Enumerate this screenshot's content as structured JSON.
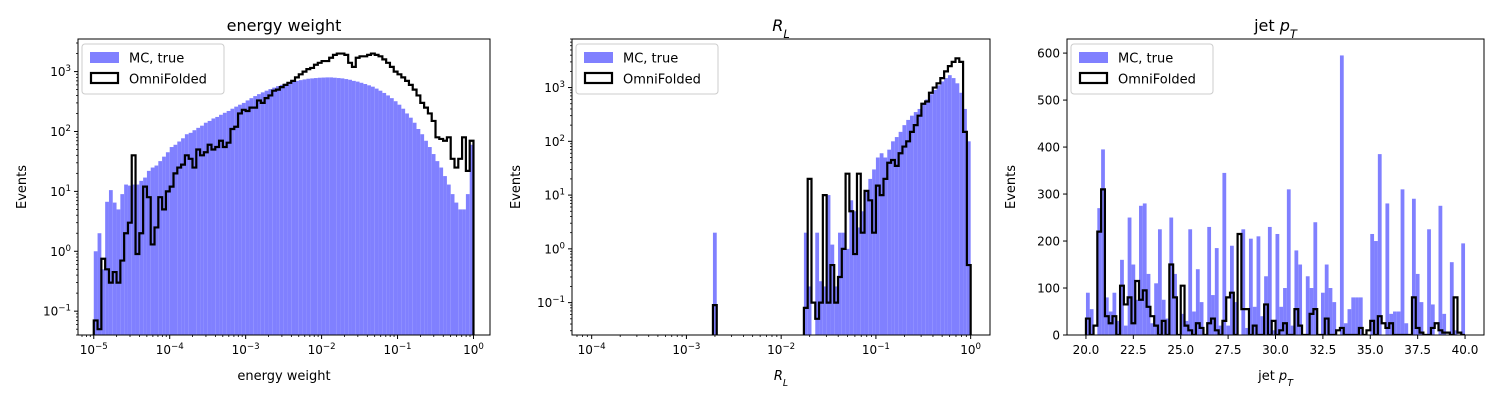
{
  "style": {
    "mc_color": "#8080ff",
    "omni_color": "#000000",
    "frame_color": "#000000",
    "legend_border": "#cccccc"
  },
  "legend": {
    "mc_label": "MC, true",
    "omni_label": "OmniFolded",
    "location": "upper-left"
  },
  "chart_data": [
    {
      "type": "histogram",
      "title_parts": [
        {
          "t": "energy weight"
        }
      ],
      "xlabel_parts": [
        {
          "t": "energy weight"
        }
      ],
      "ylabel": "Events",
      "xscale": "log",
      "yscale": "log",
      "xlim": [
        6.2e-06,
        1.65
      ],
      "ylim": [
        0.04,
        3500
      ],
      "xticks": [
        {
          "v": 1e-05,
          "b": "10",
          "e": "−5"
        },
        {
          "v": 0.0001,
          "b": "10",
          "e": "−4"
        },
        {
          "v": 0.001,
          "b": "10",
          "e": "−3"
        },
        {
          "v": 0.01,
          "b": "10",
          "e": "−2"
        },
        {
          "v": 0.1,
          "b": "10",
          "e": "−1"
        },
        {
          "v": 1,
          "b": "10",
          "e": "0"
        }
      ],
      "yticks": [
        {
          "v": 0.1,
          "b": "10",
          "e": "−1"
        },
        {
          "v": 1,
          "b": "10",
          "e": "0"
        },
        {
          "v": 10,
          "b": "10",
          "e": "1"
        },
        {
          "v": 100,
          "b": "10",
          "e": "2"
        },
        {
          "v": 1000,
          "b": "10",
          "e": "3"
        }
      ],
      "bins": {
        "scale": "log",
        "range": [
          1e-05,
          1
        ],
        "count": 100
      },
      "series": [
        {
          "name": "MC, true",
          "style": "filled",
          "values": [
            1.0,
            2.0,
            0.5,
            6.7,
            10.5,
            6.5,
            5.0,
            9.0,
            13.0,
            12.5,
            13.0,
            13.0,
            15.0,
            17.0,
            22.0,
            25.0,
            27.0,
            32.0,
            38.0,
            45.0,
            55.0,
            60.0,
            68.0,
            77.0,
            90.0,
            95.0,
            105.0,
            115.0,
            125.0,
            140.0,
            150.0,
            165.0,
            175.0,
            190.0,
            205.0,
            220.0,
            240.0,
            260.0,
            280.0,
            300.0,
            330.0,
            360.0,
            390.0,
            420.0,
            450.0,
            480.0,
            510.0,
            540.0,
            570.0,
            600.0,
            630.0,
            660.0,
            680.0,
            700.0,
            720.0,
            740.0,
            760.0,
            770.0,
            780.0,
            790.0,
            795.0,
            800.0,
            800.0,
            790.0,
            780.0,
            770.0,
            750.0,
            730.0,
            700.0,
            680.0,
            650.0,
            620.0,
            590.0,
            560.0,
            520.0,
            480.0,
            440.0,
            400.0,
            360.0,
            320.0,
            280.0,
            240.0,
            200.0,
            170.0,
            140.0,
            110.0,
            90.0,
            70.0,
            55.0,
            42.0,
            32.0,
            25.0,
            18.0,
            13.0,
            9.0,
            6.5,
            5.0,
            5.0,
            9.0,
            60.0
          ]
        },
        {
          "name": "OmniFolded",
          "style": "step",
          "values": [
            0.07,
            0.05,
            0.75,
            0.5,
            0.3,
            0.45,
            0.3,
            0.7,
            2.0,
            3.0,
            40.0,
            0.9,
            2.0,
            12.0,
            8.0,
            1.3,
            2.5,
            8.0,
            5.0,
            10.0,
            12.0,
            20.0,
            25.0,
            28.0,
            40.0,
            35.0,
            25.0,
            50.0,
            40.0,
            45.0,
            60.0,
            50.0,
            55.0,
            70.0,
            55.0,
            65.0,
            110.0,
            120.0,
            200.0,
            230.0,
            220.0,
            250.0,
            250.0,
            330.0,
            300.0,
            360.0,
            400.0,
            480.0,
            500.0,
            550.0,
            600.0,
            650.0,
            700.0,
            800.0,
            900.0,
            1000.0,
            1100.0,
            1150.0,
            1300.0,
            1400.0,
            1500.0,
            1500.0,
            1700.0,
            1900.0,
            2000.0,
            2000.0,
            1900.0,
            1400.0,
            1200.0,
            1700.0,
            1800.0,
            1800.0,
            1900.0,
            2000.0,
            1900.0,
            1800.0,
            1600.0,
            1400.0,
            1200.0,
            1000.0,
            900.0,
            800.0,
            700.0,
            600.0,
            500.0,
            400.0,
            300.0,
            250.0,
            200.0,
            150.0,
            80.0,
            75.0,
            70.0,
            80.0,
            35.0,
            25.0,
            35.0,
            80.0,
            22.0,
            70.0
          ]
        }
      ]
    },
    {
      "type": "histogram",
      "title_parts": [
        {
          "t": "R",
          "i": true
        },
        {
          "t": "L",
          "sub": true,
          "i": true
        }
      ],
      "xlabel_parts": [
        {
          "t": "R",
          "i": true
        },
        {
          "t": "L",
          "sub": true,
          "i": true
        }
      ],
      "ylabel": "Events",
      "xscale": "log",
      "yscale": "log",
      "xlim": [
        6.2e-05,
        1.6
      ],
      "ylim": [
        0.025,
        8000
      ],
      "xticks": [
        {
          "v": 0.0001,
          "b": "10",
          "e": "−4"
        },
        {
          "v": 0.001,
          "b": "10",
          "e": "−3"
        },
        {
          "v": 0.01,
          "b": "10",
          "e": "−2"
        },
        {
          "v": 0.1,
          "b": "10",
          "e": "−1"
        },
        {
          "v": 1,
          "b": "10",
          "e": "0"
        }
      ],
      "yticks": [
        {
          "v": 0.1,
          "b": "10",
          "e": "−1"
        },
        {
          "v": 1,
          "b": "10",
          "e": "0"
        },
        {
          "v": 10,
          "b": "10",
          "e": "1"
        },
        {
          "v": 100,
          "b": "10",
          "e": "2"
        },
        {
          "v": 1000,
          "b": "10",
          "e": "3"
        }
      ],
      "bins": {
        "scale": "log",
        "range": [
          0.0001,
          1
        ],
        "count": 100
      },
      "series": [
        {
          "name": "MC, true",
          "style": "filled",
          "values": [
            0,
            0,
            0,
            0,
            0,
            0,
            0,
            0,
            0,
            0,
            0,
            0,
            0,
            0,
            0,
            0,
            0,
            0,
            0,
            0,
            0,
            0,
            0,
            0,
            0,
            0,
            0,
            0,
            0,
            0,
            0,
            0,
            2.0,
            0,
            0,
            0,
            0,
            0,
            0,
            0,
            0,
            0,
            0,
            0,
            0,
            0,
            0,
            0,
            0,
            0,
            0,
            0,
            0,
            0,
            0,
            0,
            2.0,
            0.2,
            0,
            2.0,
            0.25,
            0.2,
            10.0,
            1.2,
            0.2,
            2.0,
            2.0,
            1.0,
            8.0,
            5.0,
            2.5,
            5.0,
            12.0,
            20.0,
            30.0,
            50.0,
            60.0,
            50.0,
            70.0,
            100.0,
            120.0,
            150.0,
            200.0,
            250.0,
            300.0,
            350.0,
            400.0,
            500.0,
            600.0,
            750.0,
            900.0,
            1100.0,
            1300.0,
            1500.0,
            1700.0,
            1500.0,
            1200.0,
            800.0,
            400.0,
            100.0
          ]
        },
        {
          "name": "OmniFolded",
          "style": "step",
          "values": [
            0,
            0,
            0,
            0,
            0,
            0,
            0,
            0,
            0,
            0,
            0,
            0,
            0,
            0,
            0,
            0,
            0,
            0,
            0,
            0,
            0,
            0,
            0,
            0,
            0,
            0,
            0,
            0,
            0,
            0,
            0,
            0,
            0.09,
            0,
            0,
            0,
            0,
            0,
            0,
            0,
            0,
            0,
            0,
            0,
            0,
            0,
            0,
            0,
            0,
            0,
            0,
            0,
            0,
            0,
            0,
            0,
            0.08,
            20.0,
            0.1,
            0.05,
            0.1,
            10.0,
            0.1,
            0.5,
            0.1,
            0.3,
            1.0,
            25.0,
            5.0,
            0.8,
            25.0,
            2.0,
            12.0,
            8.0,
            2.0,
            15.0,
            10.0,
            20.0,
            40.0,
            45.0,
            35.0,
            60.0,
            80.0,
            100.0,
            150.0,
            200.0,
            300.0,
            500.0,
            550.0,
            800.0,
            1000.0,
            1200.0,
            1500.0,
            2000.0,
            2500.0,
            3000.0,
            3500.0,
            3000.0,
            150.0,
            0.5
          ]
        }
      ]
    },
    {
      "type": "histogram",
      "title_parts": [
        {
          "t": "jet "
        },
        {
          "t": "p",
          "i": true
        },
        {
          "t": "T",
          "sub": true,
          "i": true
        }
      ],
      "xlabel_parts": [
        {
          "t": "jet "
        },
        {
          "t": "p",
          "i": true
        },
        {
          "t": "T",
          "sub": true,
          "i": true
        }
      ],
      "ylabel": "Events",
      "xscale": "linear",
      "yscale": "linear",
      "xlim": [
        19.0,
        41.0
      ],
      "ylim": [
        0,
        630
      ],
      "xticks": [
        {
          "v": 20,
          "t": "20.0"
        },
        {
          "v": 22.5,
          "t": "22.5"
        },
        {
          "v": 25,
          "t": "25.0"
        },
        {
          "v": 27.5,
          "t": "27.5"
        },
        {
          "v": 30,
          "t": "30.0"
        },
        {
          "v": 32.5,
          "t": "32.5"
        },
        {
          "v": 35,
          "t": "35.0"
        },
        {
          "v": 37.5,
          "t": "37.5"
        },
        {
          "v": 40,
          "t": "40.0"
        }
      ],
      "yticks": [
        {
          "v": 0,
          "t": "0"
        },
        {
          "v": 100,
          "t": "100"
        },
        {
          "v": 200,
          "t": "200"
        },
        {
          "v": 300,
          "t": "300"
        },
        {
          "v": 400,
          "t": "400"
        },
        {
          "v": 500,
          "t": "500"
        },
        {
          "v": 600,
          "t": "600"
        }
      ],
      "bins": {
        "scale": "linear",
        "range": [
          20,
          40
        ],
        "count": 100
      },
      "series": [
        {
          "name": "MC, true",
          "style": "filled",
          "values": [
            90,
            55,
            0,
            270,
            395,
            80,
            50,
            90,
            30,
            160,
            20,
            250,
            150,
            75,
            275,
            280,
            130,
            25,
            110,
            225,
            75,
            35,
            250,
            130,
            0,
            45,
            30,
            225,
            50,
            140,
            70,
            0,
            230,
            85,
            185,
            20,
            345,
            20,
            190,
            70,
            0,
            225,
            15,
            205,
            60,
            210,
            40,
            125,
            230,
            10,
            215,
            60,
            100,
            310,
            20,
            180,
            150,
            0,
            125,
            100,
            240,
            0,
            90,
            150,
            100,
            70,
            0,
            595,
            25,
            55,
            80,
            80,
            80,
            0,
            0,
            215,
            200,
            385,
            0,
            280,
            45,
            50,
            50,
            310,
            25,
            0,
            290,
            130,
            70,
            0,
            225,
            65,
            0,
            275,
            45,
            0,
            155,
            10,
            0,
            195
          ]
        },
        {
          "name": "OmniFolded",
          "style": "step",
          "values": [
            35,
            0,
            20,
            220,
            310,
            40,
            25,
            40,
            0,
            105,
            65,
            80,
            25,
            115,
            75,
            95,
            60,
            40,
            20,
            0,
            30,
            0,
            150,
            80,
            0,
            105,
            20,
            10,
            0,
            25,
            15,
            0,
            25,
            35,
            10,
            0,
            30,
            80,
            90,
            0,
            215,
            55,
            55,
            0,
            20,
            0,
            0,
            65,
            0,
            30,
            0,
            10,
            25,
            0,
            0,
            55,
            20,
            0,
            0,
            45,
            55,
            0,
            0,
            35,
            0,
            0,
            10,
            15,
            0,
            0,
            0,
            0,
            15,
            0,
            10,
            30,
            0,
            40,
            25,
            15,
            25,
            0,
            0,
            0,
            0,
            0,
            80,
            15,
            5,
            0,
            0,
            15,
            25,
            10,
            5,
            5,
            0,
            80,
            5,
            0
          ]
        }
      ]
    }
  ]
}
